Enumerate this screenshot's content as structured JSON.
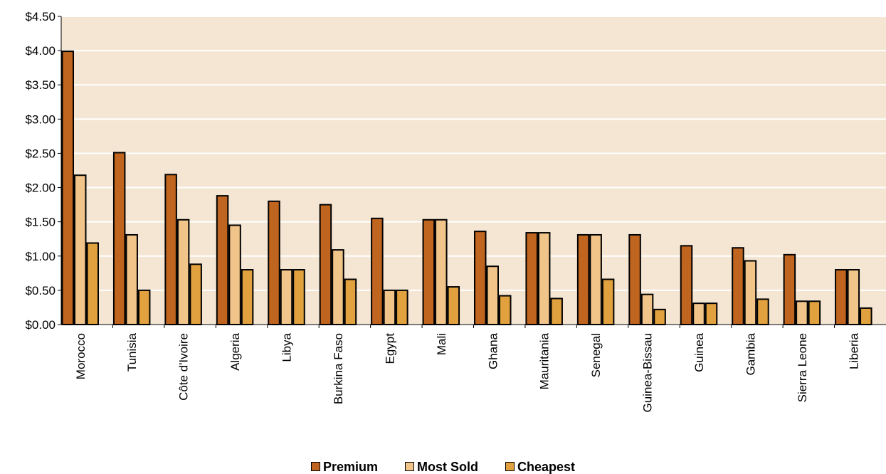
{
  "chart_data": {
    "type": "bar",
    "categories": [
      "Morocco",
      "Tunisia",
      "Côte d'Ivoire",
      "Algeria",
      "Libya",
      "Burkina Faso",
      "Egypt",
      "Mali",
      "Ghana",
      "Mauritania",
      "Senegal",
      "Guinea-Bissau",
      "Guinea",
      "Gambia",
      "Sierra Leone",
      "Liberia"
    ],
    "series": [
      {
        "name": "Premium",
        "color": "#C0651F",
        "values": [
          3.99,
          2.51,
          2.19,
          1.88,
          1.8,
          1.75,
          1.55,
          1.53,
          1.36,
          1.34,
          1.31,
          1.31,
          1.15,
          1.12,
          1.02,
          0.8
        ]
      },
      {
        "name": "Most Sold",
        "color": "#F1C48A",
        "values": [
          2.18,
          1.31,
          1.53,
          1.45,
          0.8,
          1.09,
          0.5,
          1.53,
          0.85,
          1.34,
          1.31,
          0.44,
          0.31,
          0.93,
          0.34,
          0.8
        ]
      },
      {
        "name": "Cheapest",
        "color": "#E1A13E",
        "values": [
          1.19,
          0.5,
          0.88,
          0.8,
          0.8,
          0.66,
          0.5,
          0.55,
          0.42,
          0.38,
          0.66,
          0.22,
          0.31,
          0.37,
          0.34,
          0.24
        ]
      }
    ],
    "y_tick_labels": [
      "$0.00",
      "$0.50",
      "$1.00",
      "$1.50",
      "$2.00",
      "$2.50",
      "$3.00",
      "$3.50",
      "$4.00",
      "$4.50"
    ],
    "ylim": [
      0,
      4.5
    ],
    "grid": true,
    "plot_background": "#F5E6D3",
    "legend_position": "bottom",
    "title": "",
    "xlabel": "",
    "ylabel": ""
  }
}
